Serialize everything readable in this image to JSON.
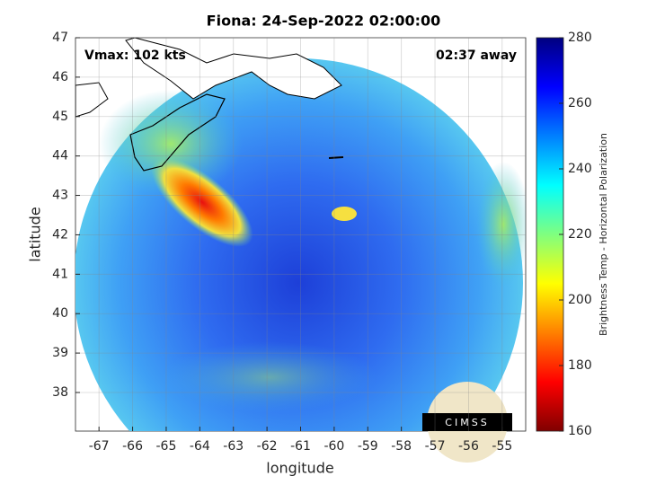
{
  "chart_data": {
    "type": "map",
    "title": "Fiona: 24-Sep-2022 02:00:00",
    "annotations": [
      "Vmax: 102 kts",
      "02:37 away"
    ],
    "xlabel": "longitude",
    "ylabel": "latitude",
    "xlim": [
      -67.7,
      -54.3
    ],
    "ylim": [
      37.02,
      47
    ],
    "xticks": [
      -67,
      -66,
      -65,
      -64,
      -63,
      -62,
      -61,
      -60,
      -59,
      -58,
      -57,
      -56,
      -55
    ],
    "yticks": [
      38,
      39,
      40,
      41,
      42,
      43,
      44,
      45,
      46,
      47
    ],
    "grid": true,
    "colorbar": {
      "label": "Brightness Temp - Horizontal Polarization",
      "colormap": "jet",
      "clim": [
        160,
        280
      ],
      "ticks": [
        160,
        180,
        200,
        220,
        240,
        260,
        280
      ]
    },
    "logo": "CIMSS"
  }
}
